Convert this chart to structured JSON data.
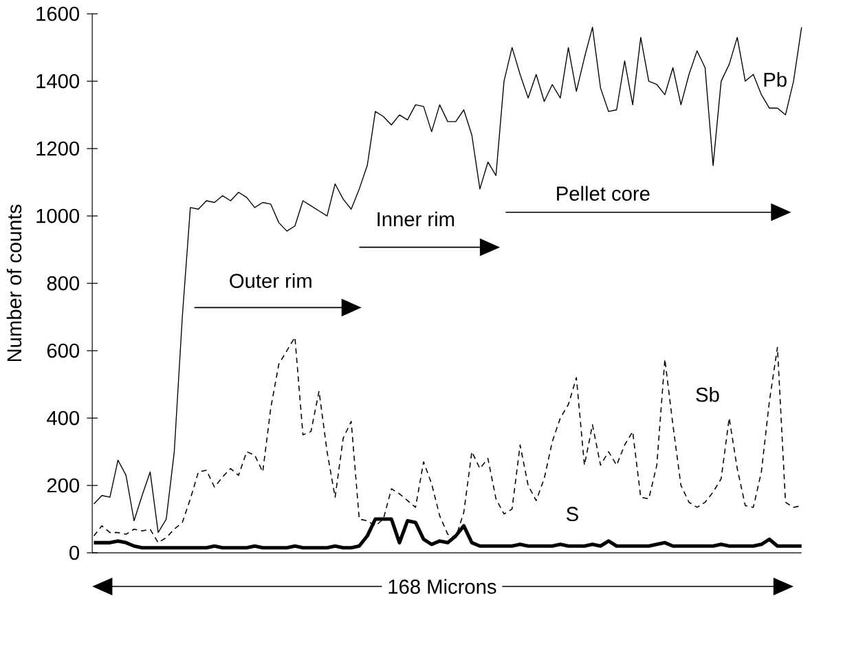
{
  "chart_data": {
    "type": "line",
    "ylabel": "Number of counts",
    "ylim": [
      0,
      1600
    ],
    "yticks": [
      0,
      200,
      400,
      600,
      800,
      1000,
      1200,
      1400,
      1600
    ],
    "tick_labels": "y",
    "categories": [
      null,
      null,
      null,
      null,
      null,
      null,
      null,
      null,
      null,
      null,
      null,
      null,
      null,
      null,
      null,
      null,
      null,
      null,
      null,
      null,
      null,
      null,
      null,
      null,
      null,
      null,
      null,
      null,
      null,
      null,
      null,
      null,
      null,
      null,
      null,
      null,
      null,
      null,
      null,
      null,
      null,
      null,
      null,
      null,
      null,
      null,
      null,
      null,
      null,
      null,
      null,
      null,
      null,
      null,
      null,
      null,
      null,
      null,
      null,
      null,
      null,
      null,
      null,
      null,
      null,
      null,
      null,
      null,
      null,
      null,
      null,
      null,
      null,
      null,
      null,
      null,
      null,
      null,
      null,
      null,
      null,
      null,
      null,
      null,
      null,
      null,
      null,
      null,
      null
    ],
    "series": [
      {
        "name": "Pb",
        "color": "#000000",
        "line_style": "solid",
        "values": [
          145,
          170,
          165,
          275,
          230,
          95,
          170,
          240,
          60,
          100,
          300,
          700,
          1025,
          1020,
          1045,
          1040,
          1060,
          1045,
          1070,
          1055,
          1025,
          1040,
          1035,
          980,
          955,
          970,
          1045,
          1030,
          1015,
          1000,
          1095,
          1050,
          1020,
          1080,
          1150,
          1310,
          1295,
          1270,
          1300,
          1285,
          1330,
          1325,
          1250,
          1330,
          1280,
          1280,
          1315,
          1240,
          1080,
          1160,
          1120,
          1400,
          1500,
          1420,
          1350,
          1420,
          1340,
          1390,
          1350,
          1500,
          1370,
          1470,
          1560,
          1380,
          1310,
          1315,
          1460,
          1330,
          1530,
          1400,
          1390,
          1360,
          1440,
          1330,
          1420,
          1490,
          1440,
          1150,
          1400,
          1450,
          1530,
          1400,
          1420,
          1360,
          1320,
          1320,
          1300,
          1400,
          1560
        ]
      },
      {
        "name": "Sb",
        "color": "#000000",
        "line_style": "dashed",
        "values": [
          50,
          80,
          60,
          60,
          55,
          70,
          65,
          70,
          30,
          45,
          70,
          90,
          160,
          240,
          245,
          195,
          225,
          250,
          230,
          300,
          290,
          240,
          430,
          560,
          600,
          640,
          350,
          360,
          480,
          300,
          165,
          340,
          390,
          100,
          95,
          80,
          100,
          190,
          175,
          155,
          135,
          270,
          205,
          110,
          55,
          45,
          120,
          300,
          250,
          280,
          160,
          115,
          130,
          320,
          200,
          155,
          220,
          330,
          400,
          440,
          520,
          260,
          380,
          260,
          300,
          260,
          320,
          360,
          165,
          160,
          260,
          575,
          380,
          200,
          150,
          135,
          150,
          180,
          220,
          400,
          250,
          140,
          135,
          240,
          450,
          610,
          150,
          135,
          140
        ]
      },
      {
        "name": "S",
        "color": "#000000",
        "line_style": "solid",
        "values": [
          30,
          30,
          30,
          35,
          30,
          20,
          15,
          15,
          15,
          15,
          15,
          15,
          15,
          15,
          15,
          20,
          15,
          15,
          15,
          15,
          20,
          15,
          15,
          15,
          15,
          20,
          15,
          15,
          15,
          15,
          20,
          15,
          15,
          20,
          50,
          100,
          100,
          100,
          30,
          95,
          90,
          40,
          25,
          35,
          30,
          50,
          80,
          30,
          20,
          20,
          20,
          20,
          20,
          25,
          20,
          20,
          20,
          20,
          25,
          20,
          20,
          20,
          25,
          20,
          35,
          20,
          20,
          20,
          20,
          20,
          25,
          30,
          20,
          20,
          20,
          20,
          20,
          20,
          25,
          20,
          20,
          20,
          20,
          25,
          40,
          20,
          20,
          20,
          20
        ]
      }
    ],
    "annotations": [
      "Outer rim",
      "Inner rim",
      "Pellet core",
      "168 Microns"
    ]
  }
}
